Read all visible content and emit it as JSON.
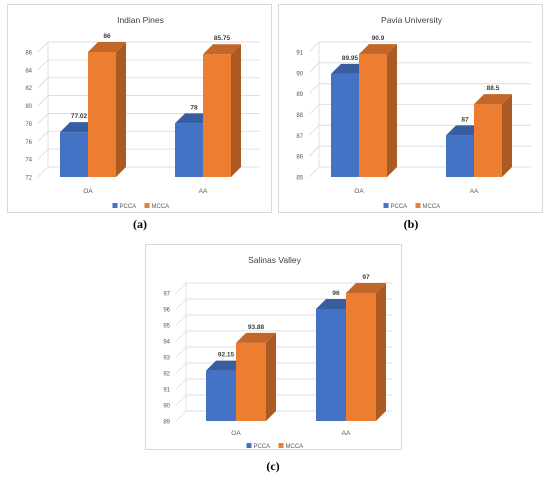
{
  "colors": {
    "pcca": "#4472c4",
    "mcca": "#ed7d31",
    "grid": "#d9d9d9",
    "axis_text": "#595959"
  },
  "captions": {
    "a": "(a)",
    "b": "(b)",
    "c": "(c)"
  },
  "chart_data": [
    {
      "type": "bar",
      "title": "Indian Pines",
      "categories": [
        "OA",
        "AA"
      ],
      "series": [
        {
          "name": "PCCA",
          "values": [
            77.02,
            78
          ]
        },
        {
          "name": "MCCA",
          "values": [
            86,
            85.75
          ]
        }
      ],
      "value_labels": [
        [
          "77.02",
          "78"
        ],
        [
          "86",
          "85.75"
        ]
      ],
      "ylim": [
        72,
        86
      ],
      "yticks": [
        72,
        74,
        76,
        78,
        80,
        82,
        84,
        86
      ],
      "grid": true,
      "legend": "bottom"
    },
    {
      "type": "bar",
      "title": "Pavia University",
      "categories": [
        "OA",
        "AA"
      ],
      "series": [
        {
          "name": "PCCA",
          "values": [
            89.95,
            87
          ]
        },
        {
          "name": "MCCA",
          "values": [
            90.9,
            88.5
          ]
        }
      ],
      "value_labels": [
        [
          "89.95",
          "87"
        ],
        [
          "90.9",
          "88.5"
        ]
      ],
      "ylim": [
        85,
        91
      ],
      "yticks": [
        85,
        86,
        87,
        88,
        89,
        90,
        91
      ],
      "grid": true,
      "legend": "bottom"
    },
    {
      "type": "bar",
      "title": "Salinas Valley",
      "categories": [
        "OA",
        "AA"
      ],
      "series": [
        {
          "name": "PCCA",
          "values": [
            92.15,
            96
          ]
        },
        {
          "name": "MCCA",
          "values": [
            93.88,
            97
          ]
        }
      ],
      "value_labels": [
        [
          "92.15",
          "96"
        ],
        [
          "93.88",
          "97"
        ]
      ],
      "ylim": [
        89,
        97
      ],
      "yticks": [
        89,
        90,
        91,
        92,
        93,
        94,
        95,
        96,
        97
      ],
      "grid": true,
      "legend": "bottom"
    }
  ]
}
